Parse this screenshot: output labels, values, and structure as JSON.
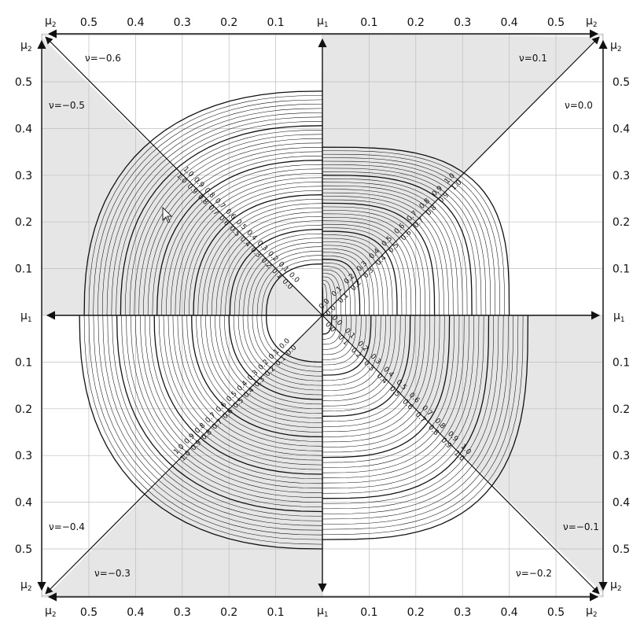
{
  "diagram": {
    "axis_symbol_mu1": "μ",
    "axis_symbol_mu1_sub": "1",
    "axis_symbol_mu2": "μ",
    "axis_symbol_mu2_sub": "2",
    "tick_labels": [
      "0.1",
      "0.2",
      "0.3",
      "0.4",
      "0.5"
    ],
    "nu_labels": {
      "top_left_upper": "ν=−0.6",
      "top_left_lower": "ν=−0.5",
      "top_right_upper": "ν=0.1",
      "top_right_lower": "ν=0.0",
      "bottom_left_upper": "ν=−0.4",
      "bottom_left_lower": "ν=−0.3",
      "bottom_right_upper": "ν=−0.1",
      "bottom_right_lower": "ν=−0.2"
    },
    "contour_labels": [
      "0.0",
      "0.1",
      "0.2",
      "0.3",
      "0.4",
      "0.5",
      "0.6",
      "0.7",
      "0.8",
      "0.9",
      "1.0"
    ],
    "colors": {
      "shade": "#e6e6e6",
      "grid": "#bdbdbd",
      "line": "#111111"
    },
    "cursor_icon": "mouse-pointer"
  }
}
